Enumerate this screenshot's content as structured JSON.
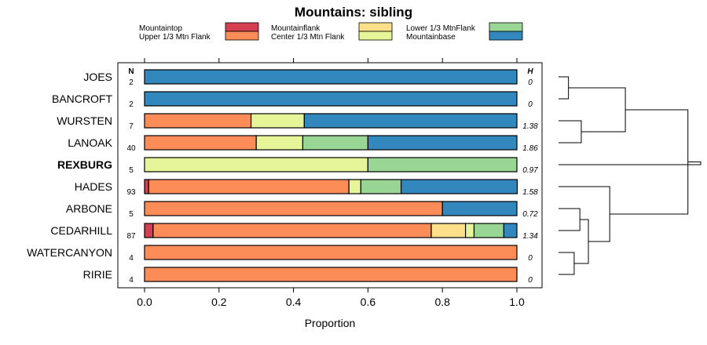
{
  "chart_data": {
    "type": "stacked-bar-horizontal",
    "title": "Mountains: sibling",
    "xlabel": "Proportion",
    "xlim": [
      0,
      1
    ],
    "xticks": [
      "0.0",
      "0.2",
      "0.4",
      "0.6",
      "0.8",
      "1.0"
    ],
    "xtick_values": [
      0,
      0.2,
      0.4,
      0.6,
      0.8,
      1.0
    ],
    "n_header": "N",
    "h_header": "H",
    "categories_legend": [
      {
        "name": "Mountaintop",
        "color": "#d53e4f"
      },
      {
        "name": "Upper 1/3 Mtn Flank",
        "color": "#fc8d59"
      },
      {
        "name": "Mountainflank",
        "color": "#fee08b"
      },
      {
        "name": "Center 1/3 Mtn Flank",
        "color": "#e6f598"
      },
      {
        "name": "Lower 1/3 MtnFlank",
        "color": "#99d594"
      },
      {
        "name": "Mountainbase",
        "color": "#3288bd"
      }
    ],
    "rows": [
      {
        "label": "JOES",
        "n": "2",
        "h": "0",
        "bold": false,
        "values": [
          0,
          0,
          0,
          0,
          0,
          1.0
        ]
      },
      {
        "label": "BANCROFT",
        "n": "2",
        "h": "0",
        "bold": false,
        "values": [
          0,
          0,
          0,
          0,
          0,
          1.0
        ]
      },
      {
        "label": "WURSTEN",
        "n": "7",
        "h": "1.38",
        "bold": false,
        "values": [
          0,
          0.286,
          0,
          0.143,
          0,
          0.571
        ]
      },
      {
        "label": "LANOAK",
        "n": "40",
        "h": "1.86",
        "bold": false,
        "values": [
          0,
          0.3,
          0,
          0.125,
          0.175,
          0.4
        ]
      },
      {
        "label": "REXBURG",
        "n": "5",
        "h": "0.97",
        "bold": true,
        "values": [
          0,
          0,
          0,
          0.6,
          0.4,
          0
        ]
      },
      {
        "label": "HADES",
        "n": "93",
        "h": "1.58",
        "bold": false,
        "values": [
          0.011,
          0.538,
          0,
          0.032,
          0.108,
          0.312
        ]
      },
      {
        "label": "ARBONE",
        "n": "5",
        "h": "0.72",
        "bold": false,
        "values": [
          0,
          0.8,
          0,
          0,
          0,
          0.2
        ]
      },
      {
        "label": "CEDARHILL",
        "n": "87",
        "h": "1.34",
        "bold": false,
        "values": [
          0.023,
          0.747,
          0.092,
          0.023,
          0.08,
          0.035
        ]
      },
      {
        "label": "WATERCANYON",
        "n": "4",
        "h": "0",
        "bold": false,
        "values": [
          0,
          1.0,
          0,
          0,
          0,
          0
        ]
      },
      {
        "label": "RIRIE",
        "n": "4",
        "h": "0",
        "bold": false,
        "values": [
          0,
          1.0,
          0,
          0,
          0,
          0
        ]
      }
    ],
    "dendrogram": {
      "leaf_order": [
        "JOES",
        "BANCROFT",
        "WURSTEN",
        "LANOAK",
        "REXBURG",
        "HADES",
        "ARBONE",
        "CEDARHILL",
        "WATERCANYON",
        "RIRIE"
      ],
      "merges": [
        {
          "a": 0,
          "b": 1,
          "height": 0.07
        },
        {
          "a": 2,
          "b": 3,
          "height": 0.16
        },
        {
          "a": 10,
          "b": 11,
          "height": 0.47
        },
        {
          "a": 6,
          "b": 7,
          "height": 0.15
        },
        {
          "a": 8,
          "b": 9,
          "height": 0.11
        },
        {
          "a": 13,
          "b": 14,
          "height": 0.21
        },
        {
          "a": 5,
          "b": 15,
          "height": 0.36
        },
        {
          "a": 12,
          "b": 16,
          "height": 0.91
        },
        {
          "a": 4,
          "b": 17,
          "height": 1.0
        }
      ]
    }
  }
}
